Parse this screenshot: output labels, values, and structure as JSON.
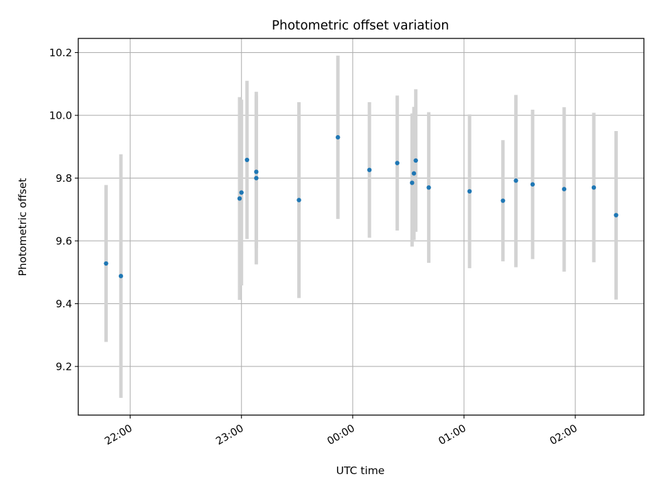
{
  "chart_data": {
    "type": "scatter",
    "title": "Photometric offset variation",
    "xlabel": "UTC time",
    "ylabel": "Photometric offset",
    "grid": true,
    "x_axis_type": "time",
    "xlim": [
      "21:32",
      "02:37"
    ],
    "ylim": [
      9.045,
      10.245
    ],
    "x_ticks": [
      {
        "t": "22:00",
        "label": "22:00"
      },
      {
        "t": "23:00",
        "label": "23:00"
      },
      {
        "t": "00:00",
        "label": "00:00"
      },
      {
        "t": "01:00",
        "label": "01:00"
      },
      {
        "t": "02:00",
        "label": "02:00"
      }
    ],
    "y_ticks": [
      9.2,
      9.4,
      9.6,
      9.8,
      10.0,
      10.2
    ],
    "y_tick_labels": [
      "9.2",
      "9.4",
      "9.6",
      "9.8",
      "10.0",
      "10.2"
    ],
    "colors": {
      "point": "#1f77b4",
      "errorbar": "#d3d3d3",
      "grid": "#b0b0b0"
    },
    "points": [
      {
        "x": "21:47",
        "y": 9.528,
        "yerr_low": 9.278,
        "yerr_high": 9.778
      },
      {
        "x": "21:55",
        "y": 9.488,
        "yerr_low": 9.1,
        "yerr_high": 9.876
      },
      {
        "x": "22:59",
        "y": 9.735,
        "yerr_low": 9.412,
        "yerr_high": 10.058
      },
      {
        "x": "23:00",
        "y": 9.754,
        "yerr_low": 9.458,
        "yerr_high": 10.05
      },
      {
        "x": "23:03",
        "y": 9.858,
        "yerr_low": 9.606,
        "yerr_high": 10.11
      },
      {
        "x": "23:08",
        "y": 9.8,
        "yerr_low": 9.525,
        "yerr_high": 10.075
      },
      {
        "x": "23:08",
        "y": 9.82,
        "yerr_low": 9.577,
        "yerr_high": 10.063
      },
      {
        "x": "23:31",
        "y": 9.73,
        "yerr_low": 9.418,
        "yerr_high": 10.042
      },
      {
        "x": "23:52",
        "y": 9.93,
        "yerr_low": 9.67,
        "yerr_high": 10.19
      },
      {
        "x": "00:09",
        "y": 9.826,
        "yerr_low": 9.61,
        "yerr_high": 10.042
      },
      {
        "x": "00:24",
        "y": 9.848,
        "yerr_low": 9.633,
        "yerr_high": 10.063
      },
      {
        "x": "00:32",
        "y": 9.785,
        "yerr_low": 9.582,
        "yerr_high": 10.006
      },
      {
        "x": "00:33",
        "y": 9.815,
        "yerr_low": 9.603,
        "yerr_high": 10.027
      },
      {
        "x": "00:34",
        "y": 9.856,
        "yerr_low": 9.629,
        "yerr_high": 10.083
      },
      {
        "x": "00:41",
        "y": 9.77,
        "yerr_low": 9.53,
        "yerr_high": 10.01
      },
      {
        "x": "01:03",
        "y": 9.758,
        "yerr_low": 9.513,
        "yerr_high": 10.003
      },
      {
        "x": "01:21",
        "y": 9.728,
        "yerr_low": 9.535,
        "yerr_high": 9.921
      },
      {
        "x": "01:28",
        "y": 9.792,
        "yerr_low": 9.516,
        "yerr_high": 10.065
      },
      {
        "x": "01:37",
        "y": 9.78,
        "yerr_low": 9.542,
        "yerr_high": 10.018
      },
      {
        "x": "01:54",
        "y": 9.765,
        "yerr_low": 9.502,
        "yerr_high": 10.026
      },
      {
        "x": "02:10",
        "y": 9.77,
        "yerr_low": 9.532,
        "yerr_high": 10.008
      },
      {
        "x": "02:22",
        "y": 9.682,
        "yerr_low": 9.413,
        "yerr_high": 9.95
      }
    ]
  }
}
